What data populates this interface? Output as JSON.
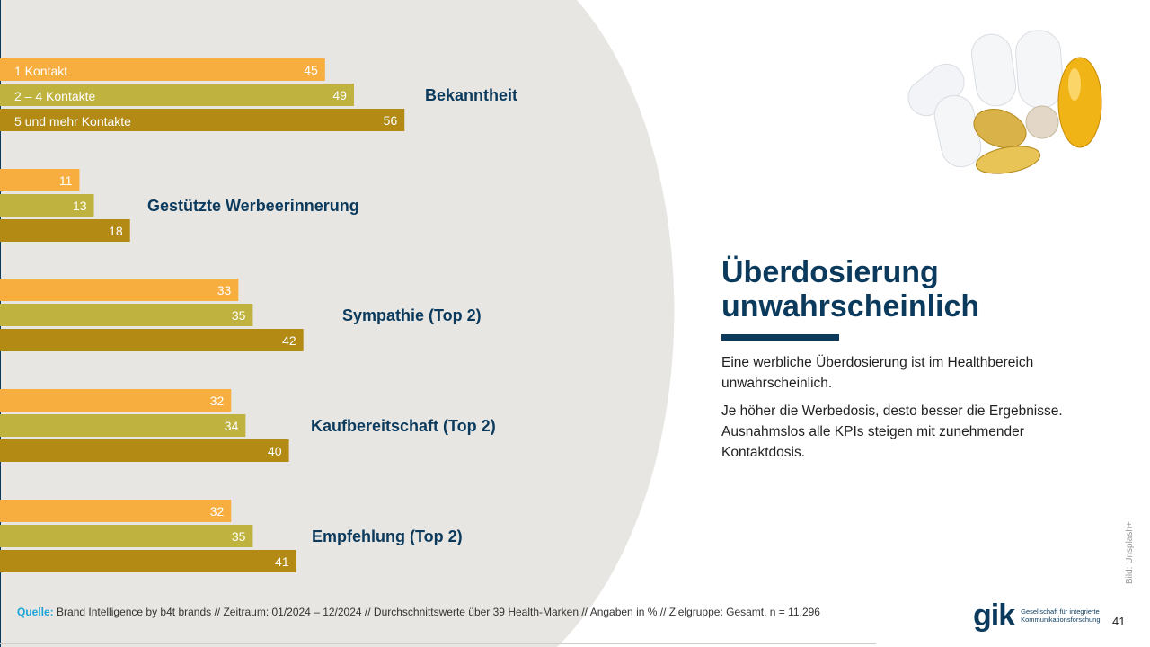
{
  "chart_data": {
    "type": "bar",
    "orientation": "horizontal",
    "series": [
      {
        "name": "1 Kontakt",
        "color": "#f8ad3f"
      },
      {
        "name": "2 – 4 Kontakte",
        "color": "#bfb23f"
      },
      {
        "name": "5 und mehr Kontakte",
        "color": "#b28a14"
      }
    ],
    "groups": [
      {
        "title": "Bekanntheit",
        "values": [
          45,
          49,
          56
        ]
      },
      {
        "title": "Gestützte Werbeerinnerung",
        "values": [
          11,
          13,
          18
        ]
      },
      {
        "title": "Sympathie (Top 2)",
        "values": [
          33,
          35,
          42
        ]
      },
      {
        "title": "Kaufbereitschaft (Top 2)",
        "values": [
          32,
          34,
          40
        ]
      },
      {
        "title": "Empfehlung (Top 2)",
        "values": [
          32,
          35,
          41
        ]
      }
    ],
    "unit": "%",
    "grid": false,
    "legend_placement": "inside first group bars"
  },
  "headline": {
    "line1": "Überdosierung",
    "line2": "unwahrscheinlich"
  },
  "body": {
    "p1": "Eine werbliche Überdosierung ist im Healthbereich unwahrscheinlich.",
    "p2": "Je höher die Werbedosis, desto besser die Ergebnisse. Ausnahmslos alle KPIs steigen mit zunehmender Kontaktdosis."
  },
  "footer": {
    "source_label": "Quelle:",
    "source_text": " Brand Intelligence by b4t brands // Zeitraum: 01/2024 – 12/2024 // Durchschnittswerte über 39 Health-Marken // Angaben in % // Zielgruppe: Gesamt, n = 11.296",
    "image_credit": "Bild: Unsplash+",
    "page_number": "41"
  },
  "logo": {
    "mark": "gik",
    "line1": "Gesellschaft für integrierte",
    "line2": "Kommunikationsforschung"
  },
  "colors": {
    "brand_navy": "#0b3a5d",
    "panel": "#e8e6e2",
    "source_label": "#1aa3d9"
  }
}
